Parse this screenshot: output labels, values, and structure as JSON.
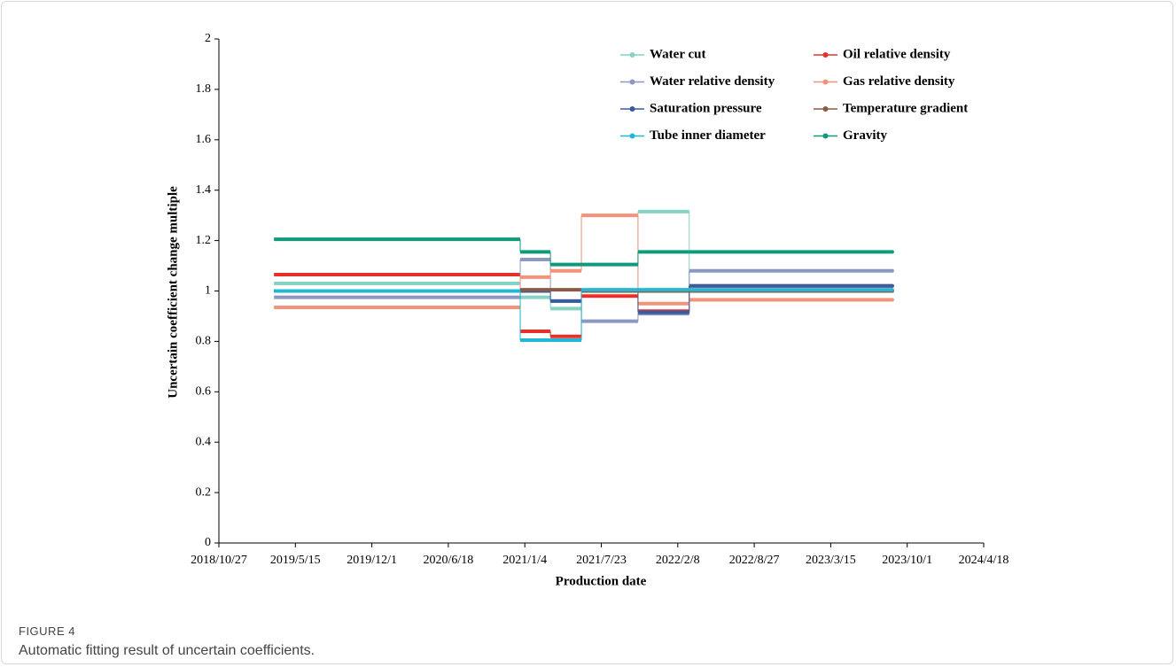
{
  "figure_label": "FIGURE 4",
  "caption": "Automatic fitting result of uncertain coefficients.",
  "chart_data": {
    "type": "step",
    "x_label": "Production date",
    "y_label": "Uncertain coefficient change multiple",
    "x": [
      "2019/3/20",
      "2020/12/23",
      "2021/3/12",
      "2021/6/1",
      "2021/10/27",
      "2022/3/10",
      "2023/8/23"
    ],
    "xlim": [
      "2018/10/27",
      "2024/4/18"
    ],
    "xticks": [
      "2018/10/27",
      "2019/5/15",
      "2019/12/1",
      "2020/6/18",
      "2021/1/4",
      "2021/7/23",
      "2022/2/8",
      "2022/8/27",
      "2023/3/15",
      "2023/10/1",
      "2024/4/18"
    ],
    "ylim": [
      0,
      2
    ],
    "yticks": [
      0,
      0.2,
      0.4,
      0.6,
      0.8,
      1,
      1.2,
      1.4,
      1.6,
      1.8,
      2
    ],
    "series": [
      {
        "name": "Water cut",
        "color": "#86d3c3",
        "values": [
          1.03,
          0.975,
          0.93,
          1.0,
          1.315,
          1.0,
          1.0
        ]
      },
      {
        "name": "Oil relative density",
        "color": "#e8302a",
        "values": [
          1.065,
          0.84,
          0.82,
          0.98,
          0.92,
          1.02,
          1.02
        ]
      },
      {
        "name": "Water relative density",
        "color": "#8a98c2",
        "values": [
          0.975,
          1.125,
          0.96,
          0.88,
          0.91,
          1.08,
          1.08
        ]
      },
      {
        "name": "Gas relative density",
        "color": "#f4927a",
        "values": [
          0.935,
          1.055,
          1.08,
          1.3,
          0.95,
          0.965,
          0.965
        ]
      },
      {
        "name": "Saturation pressure",
        "color": "#3b5c9c",
        "values": [
          1.0,
          1.0,
          0.96,
          1.0,
          0.915,
          1.02,
          1.02
        ]
      },
      {
        "name": "Temperature gradient",
        "color": "#8b5a45",
        "values": [
          1.0,
          1.005,
          1.005,
          1.0,
          1.0,
          1.0,
          1.0
        ]
      },
      {
        "name": "Tube inner diameter",
        "color": "#22b8d4",
        "values": [
          1.0,
          0.805,
          0.805,
          1.005,
          1.005,
          1.005,
          1.005
        ]
      },
      {
        "name": "Gravity",
        "color": "#0f9a7c",
        "values": [
          1.205,
          1.155,
          1.105,
          1.105,
          1.155,
          1.155,
          1.155
        ]
      }
    ]
  }
}
